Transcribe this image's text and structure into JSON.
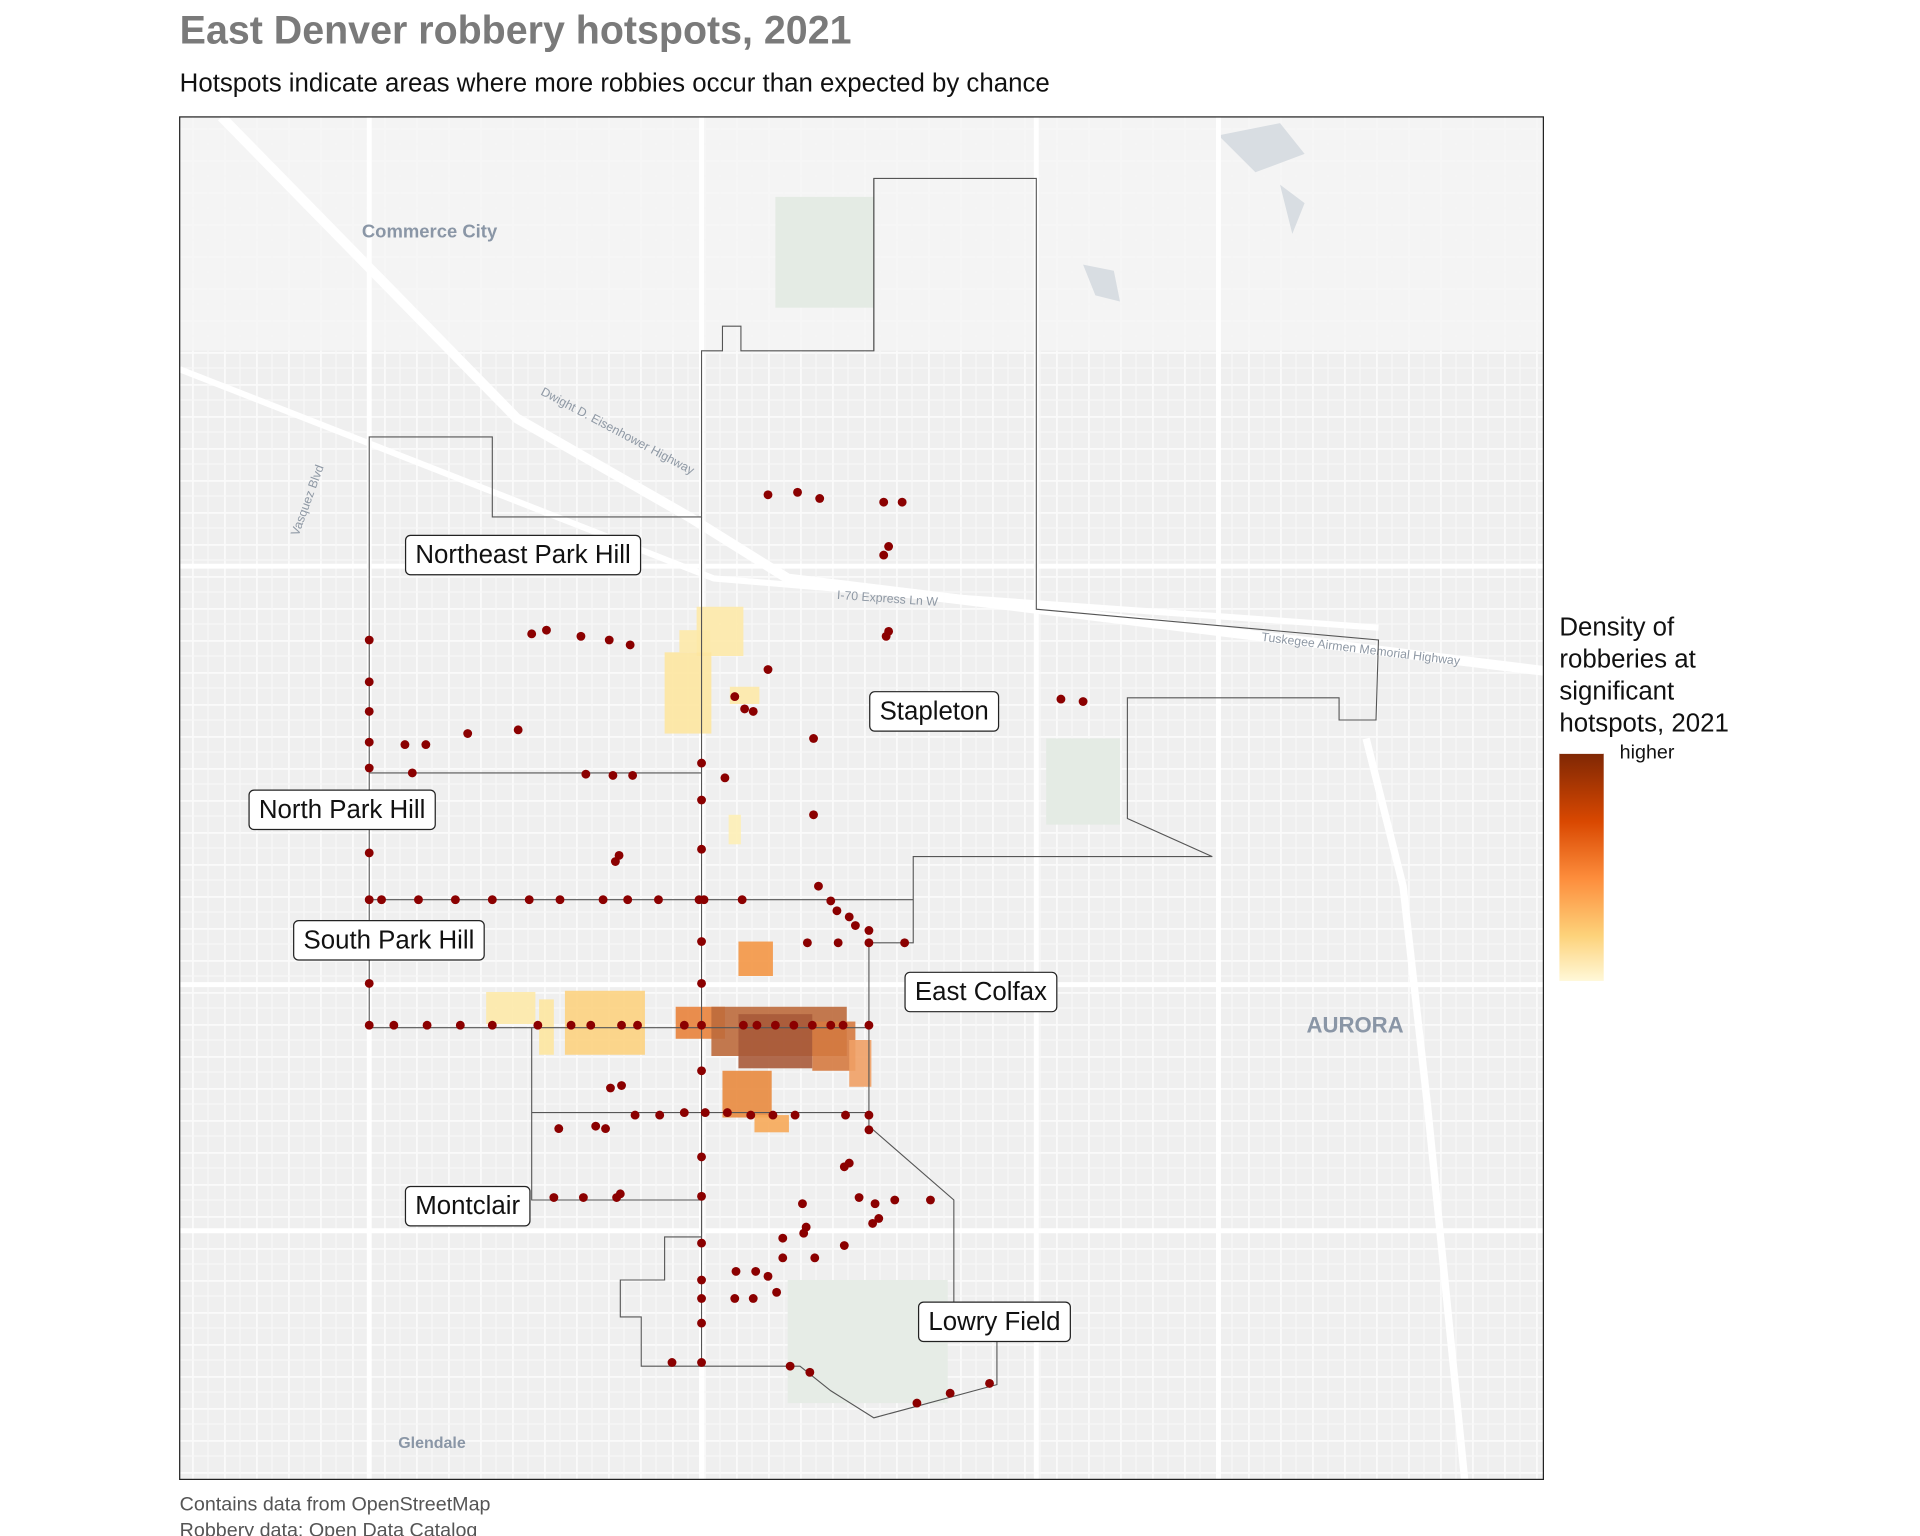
{
  "header": {
    "title": "East Denver robbery hotspots, 2021",
    "subtitle": "Hotspots indicate areas where more robbies occur than expected by chance"
  },
  "map": {
    "base_labels": [
      "Commerce City",
      "AURORA",
      "Glendale"
    ],
    "road_labels": [
      "Dwight D. Eisenhower Highway",
      "I-70 Express Ln W",
      "Tuskegee Airmen Memorial Highway",
      "Vasquez Blvd"
    ],
    "neighborhoods": [
      "Northeast Park Hill",
      "North Park Hill",
      "South Park Hill",
      "Stapleton",
      "East Colfax",
      "Montclair",
      "Lowry Field"
    ]
  },
  "legend": {
    "title": [
      "Density of",
      "robberies at",
      "significant",
      "hotspots, 2021"
    ],
    "label": "higher"
  },
  "footer": {
    "captions": [
      "Contains data from OpenStreetMap",
      "Robbery data: Open Data Catalog"
    ]
  }
}
